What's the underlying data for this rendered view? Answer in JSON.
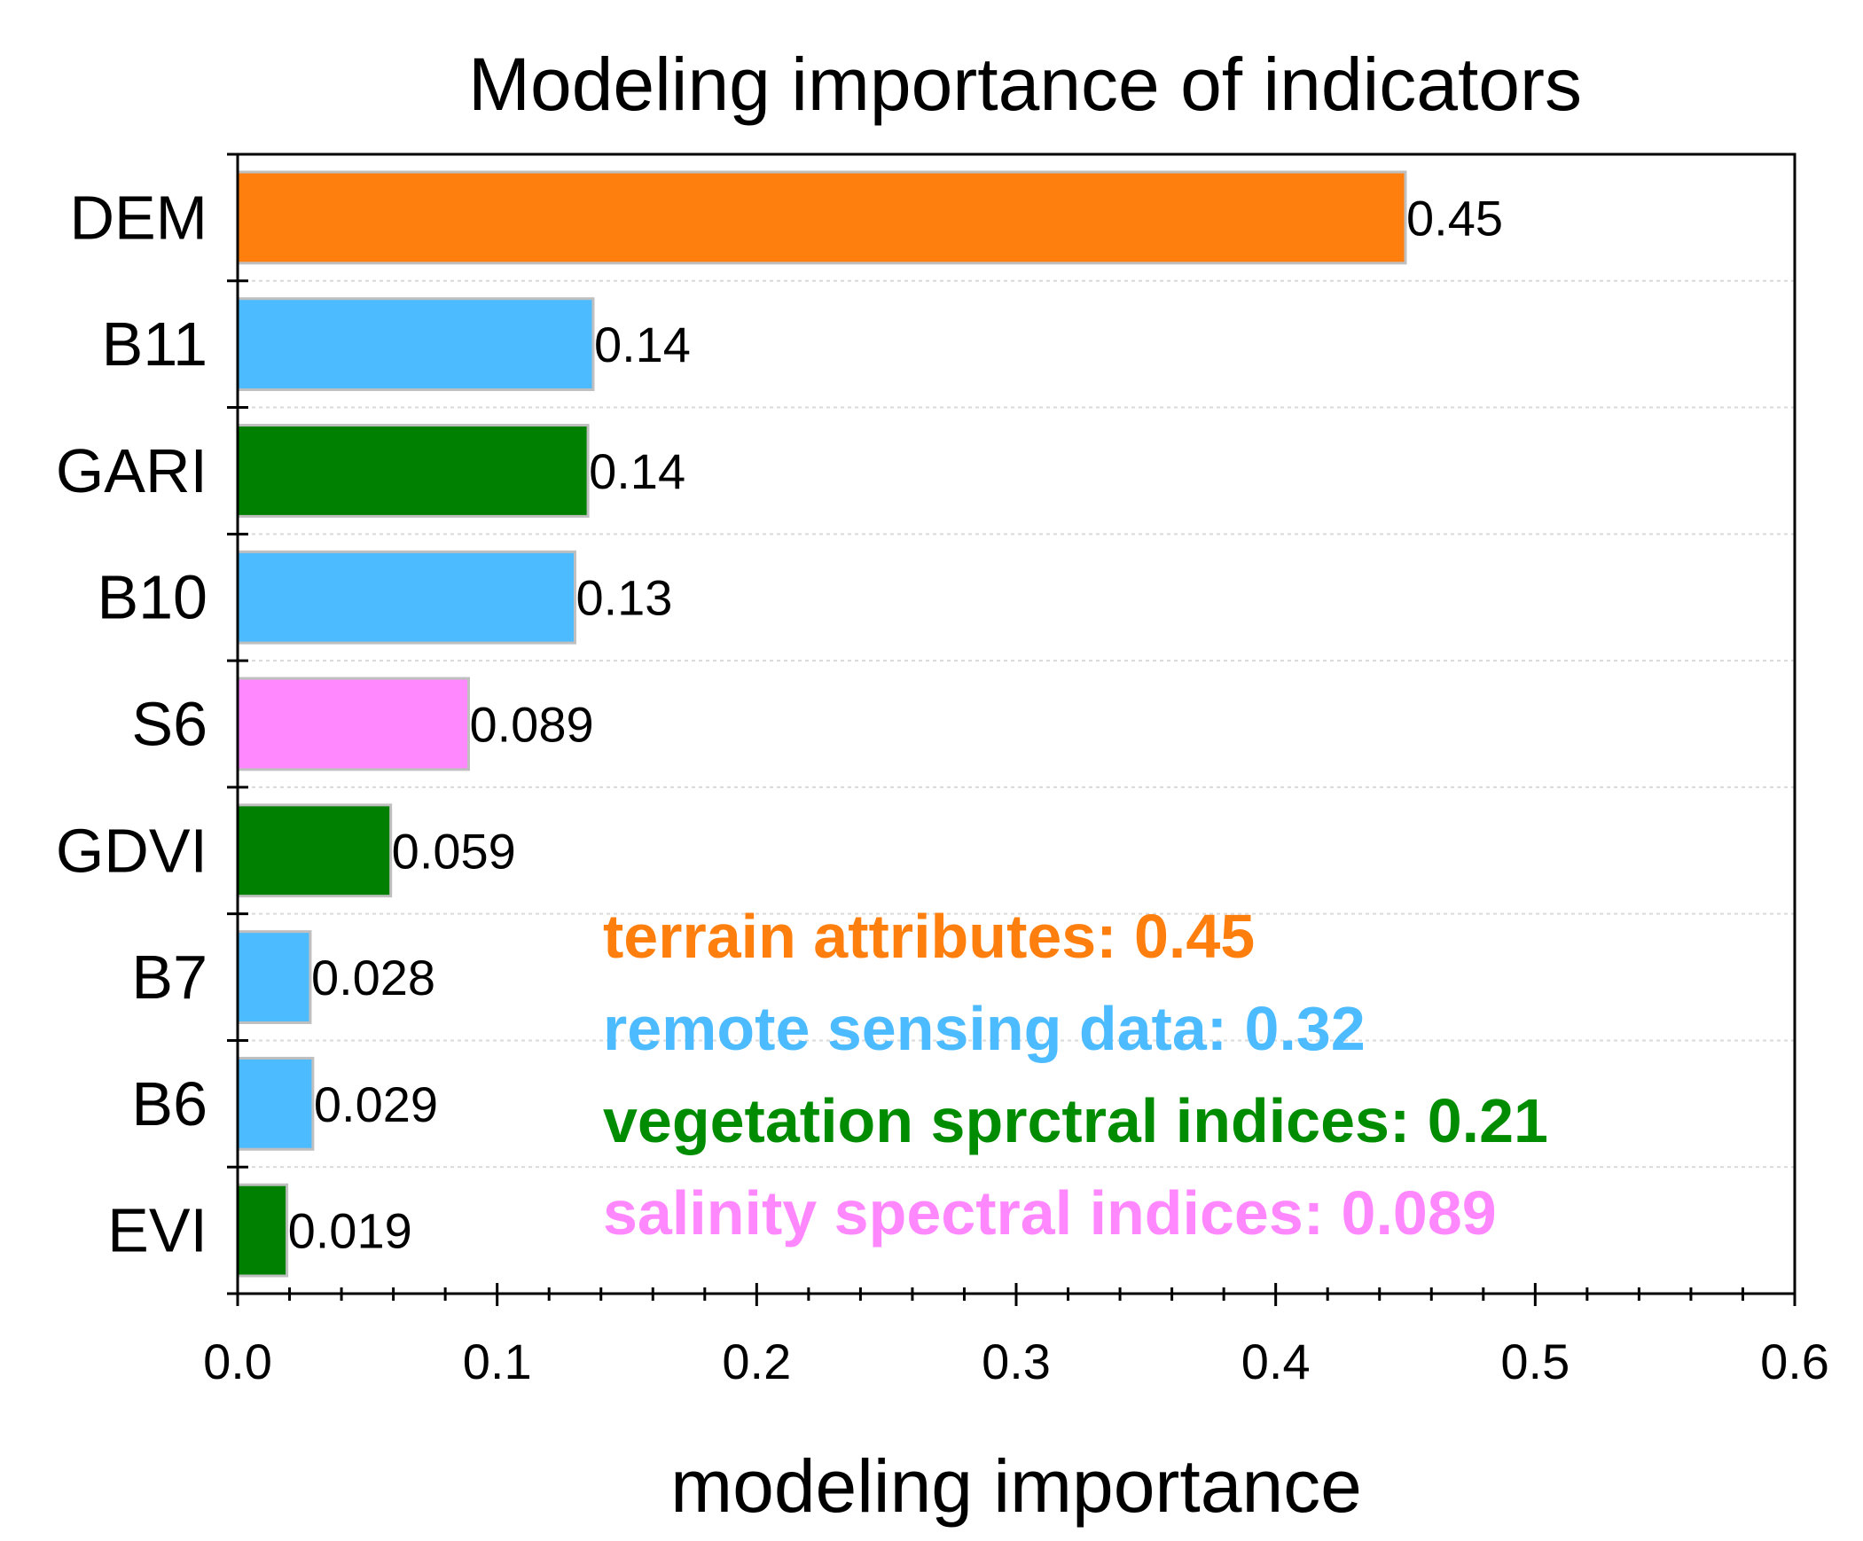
{
  "chart_data": {
    "type": "bar",
    "orientation": "horizontal",
    "title": "Modeling importance of indicators",
    "xlabel": "modeling importance",
    "ylabel": "",
    "xlim": [
      0.0,
      0.6
    ],
    "xticks": [
      "0.0",
      "0.1",
      "0.2",
      "0.3",
      "0.4",
      "0.5",
      "0.6"
    ],
    "grid": "horizontal dashed",
    "categories": [
      "DEM",
      "B11",
      "GARI",
      "B10",
      "S6",
      "GDVI",
      "B7",
      "B6",
      "EVI"
    ],
    "values": [
      0.45,
      0.137,
      0.135,
      0.13,
      0.089,
      0.059,
      0.028,
      0.029,
      0.019
    ],
    "value_labels": [
      "0.45",
      "0.14",
      "0.14",
      "0.13",
      "0.089",
      "0.059",
      "0.028",
      "0.029",
      "0.019"
    ],
    "bar_groups": [
      "terrain",
      "remote",
      "vegetation",
      "remote",
      "salinity",
      "vegetation",
      "remote",
      "remote",
      "vegetation"
    ],
    "group_colors": {
      "terrain": "#ff7f0e",
      "remote": "#4dbbff",
      "vegetation": "#008000",
      "salinity": "#ff88ff"
    },
    "legend_position": "lower-right",
    "legend": [
      {
        "text": "terrain attributes: 0.45",
        "color": "#ff7f0e"
      },
      {
        "text": "remote sensing data: 0.32",
        "color": "#4dbbff"
      },
      {
        "text": "vegetation sprctral indices: 0.21",
        "color": "#008c00"
      },
      {
        "text": "salinity spectral indices: 0.089",
        "color": "#ff88ff"
      }
    ]
  }
}
